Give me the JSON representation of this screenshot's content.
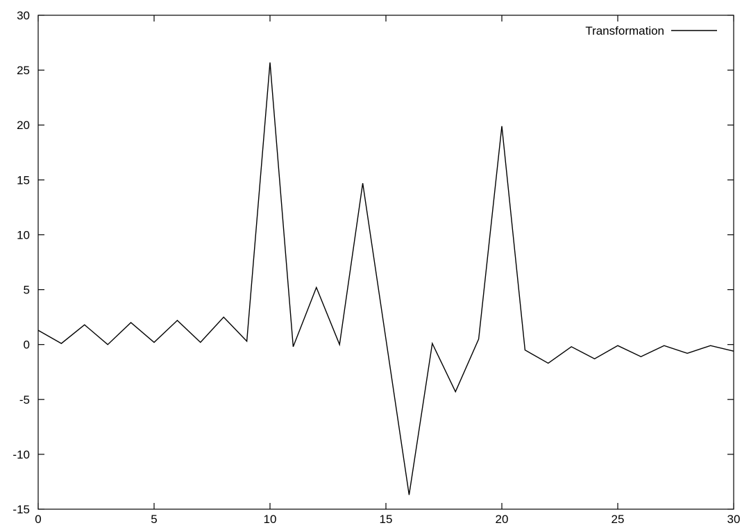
{
  "chart_data": {
    "type": "line",
    "title": "",
    "xlabel": "",
    "ylabel": "",
    "xlim": [
      0,
      30
    ],
    "ylim": [
      -15,
      30
    ],
    "x_ticks": [
      0,
      5,
      10,
      15,
      20,
      25,
      30
    ],
    "y_ticks": [
      -15,
      -10,
      -5,
      0,
      5,
      10,
      15,
      20,
      25,
      30
    ],
    "grid": false,
    "legend_position": "top-right",
    "series": [
      {
        "name": "Transformation",
        "color": "#000000",
        "x": [
          0,
          1,
          2,
          3,
          4,
          5,
          6,
          7,
          8,
          9,
          10,
          11,
          12,
          13,
          14,
          15,
          16,
          17,
          18,
          19,
          20,
          21,
          22,
          23,
          24,
          25,
          26,
          27,
          28,
          29,
          30
        ],
        "y": [
          1.3,
          0.1,
          1.8,
          0.0,
          2.0,
          0.2,
          2.2,
          0.2,
          2.5,
          0.3,
          25.7,
          -0.2,
          5.2,
          0.0,
          14.7,
          0.5,
          -13.7,
          0.1,
          -4.3,
          0.5,
          19.9,
          -0.5,
          -1.7,
          -0.2,
          -1.3,
          -0.1,
          -1.1,
          -0.1,
          -0.8,
          -0.1,
          -0.6
        ]
      }
    ]
  }
}
